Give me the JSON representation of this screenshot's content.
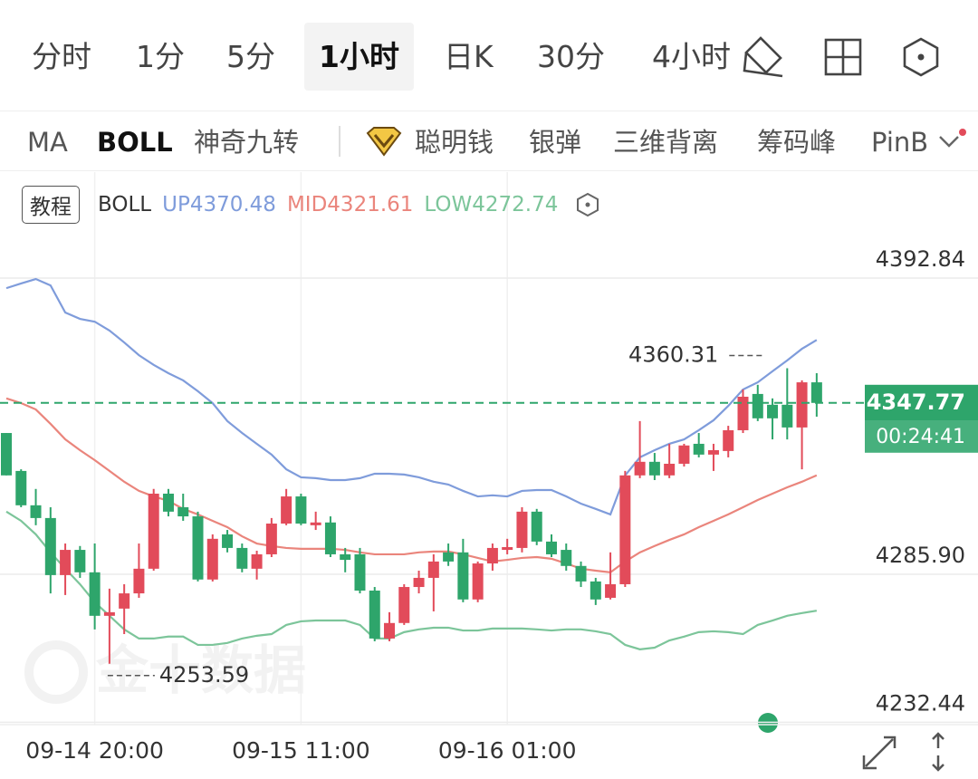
{
  "tabs": {
    "items": [
      "分时",
      "1分",
      "5分",
      "1小时",
      "日K",
      "30分",
      "4小时"
    ],
    "selected": 3
  },
  "indicators": {
    "items": [
      "MA",
      "BOLL",
      "神奇九转",
      "聪明钱",
      "银弹",
      "三维背离",
      "筹码峰",
      "PinB"
    ],
    "selected": 1
  },
  "chart_data": {
    "type": "candlestick",
    "tutorial_button": "教程",
    "indicator": "BOLL",
    "watermark": "金十数据",
    "countdown": "00:24:41",
    "up_color": "#e24b5a",
    "down_color": "#2ea56b",
    "x": [
      null,
      null,
      null,
      null,
      null,
      null,
      "09-14 20:00",
      null,
      null,
      null,
      null,
      null,
      null,
      null,
      null,
      null,
      null,
      null,
      null,
      null,
      "09-15 11:00",
      null,
      null,
      null,
      null,
      null,
      null,
      null,
      null,
      null,
      null,
      null,
      null,
      null,
      "09-16 01:00",
      null,
      null,
      null,
      null,
      null,
      null,
      null,
      null,
      null,
      null,
      null,
      null,
      null,
      null,
      null,
      null,
      null,
      null,
      null,
      null,
      null
    ],
    "candles": {
      "open": [
        4336.9,
        4323.2,
        4310.8,
        4306.2,
        4285.6,
        4294.7,
        4286.6,
        4270.9,
        4273.5,
        4279.0,
        4287.9,
        4315.0,
        4310.1,
        4306.8,
        4284.0,
        4300.3,
        4295.4,
        4287.9,
        4293.1,
        4304.2,
        4314.0,
        4303.6,
        4304.6,
        4293.1,
        4293.1,
        4280.0,
        4262.7,
        4268.3,
        4281.3,
        4284.6,
        4293.8,
        4293.8,
        4276.8,
        4289.8,
        4294.7,
        4295.4,
        4308.5,
        4297.7,
        4294.7,
        4288.9,
        4283.3,
        4277.4,
        4282.3,
        4321.6,
        4326.5,
        4321.6,
        4325.8,
        4333.0,
        4329.1,
        4330.4,
        4337.9,
        4351.0,
        4347.1,
        4347.1,
        4338.9,
        4355.2
      ],
      "high": [
        4336.9,
        4323.8,
        4316.7,
        4310.1,
        4297.0,
        4296.1,
        4297.0,
        4280.7,
        4282.3,
        4297.0,
        4316.7,
        4316.7,
        4315.0,
        4308.5,
        4300.3,
        4301.9,
        4297.0,
        4294.4,
        4306.2,
        4316.7,
        4315.0,
        4308.5,
        4306.8,
        4295.4,
        4295.4,
        4281.3,
        4272.2,
        4282.3,
        4287.2,
        4293.1,
        4297.0,
        4298.7,
        4290.5,
        4297.0,
        4298.7,
        4310.1,
        4309.5,
        4300.3,
        4297.0,
        4290.5,
        4284.6,
        4293.8,
        4323.2,
        4341.2,
        4329.7,
        4333.0,
        4333.0,
        4336.9,
        4333.0,
        4339.5,
        4352.6,
        4354.3,
        4349.4,
        4360.31,
        4355.9,
        4358.5
      ],
      "low": [
        4321.6,
        4310.1,
        4303.6,
        4279.0,
        4278.4,
        4284.6,
        4266.0,
        4253.59,
        4264.3,
        4277.4,
        4287.2,
        4306.8,
        4305.2,
        4283.3,
        4283.3,
        4293.8,
        4286.6,
        4284.0,
        4292.1,
        4303.6,
        4303.6,
        4301.9,
        4292.1,
        4286.6,
        4279.0,
        4261.7,
        4261.7,
        4267.6,
        4279.0,
        4272.5,
        4288.9,
        4275.8,
        4275.8,
        4287.2,
        4293.1,
        4293.8,
        4296.4,
        4292.1,
        4287.2,
        4281.3,
        4274.8,
        4276.8,
        4281.3,
        4320.6,
        4319.9,
        4320.6,
        4324.8,
        4328.1,
        4323.2,
        4328.1,
        4336.9,
        4341.2,
        4334.6,
        4334.6,
        4323.8,
        4342.8
      ],
      "close": [
        4321.6,
        4310.8,
        4306.2,
        4285.6,
        4294.7,
        4286.6,
        4270.9,
        4272.2,
        4279.0,
        4287.9,
        4315.0,
        4308.5,
        4306.8,
        4284.0,
        4298.7,
        4295.4,
        4287.9,
        4293.1,
        4304.2,
        4314.0,
        4304.2,
        4304.6,
        4293.1,
        4291.1,
        4280.0,
        4262.7,
        4268.3,
        4281.3,
        4284.6,
        4290.5,
        4290.5,
        4276.8,
        4289.8,
        4295.4,
        4295.7,
        4308.5,
        4297.7,
        4293.1,
        4288.9,
        4283.3,
        4276.8,
        4282.3,
        4321.6,
        4326.5,
        4321.6,
        4325.8,
        4332.4,
        4329.1,
        4330.7,
        4337.9,
        4350.0,
        4342.2,
        4342.2,
        4338.9,
        4355.2,
        4347.77
      ]
    },
    "series": [
      {
        "name": "UP",
        "color": "#7f9cdb",
        "values": [
          4389.2,
          4390.9,
          4392.5,
          4390.2,
          4380.4,
          4378.1,
          4377.1,
          4373.9,
          4369.6,
          4365.0,
          4361.5,
          4358.5,
          4355.9,
          4352.0,
          4347.7,
          4341.2,
          4336.9,
          4333.0,
          4329.1,
          4323.8,
          4320.9,
          4320.6,
          4319.9,
          4319.9,
          4320.6,
          4322.2,
          4322.2,
          4321.9,
          4320.9,
          4319.3,
          4318.3,
          4316.0,
          4314.0,
          4314.4,
          4314.0,
          4316.0,
          4316.3,
          4316.3,
          4314.0,
          4311.4,
          4309.5,
          4307.5,
          4321.6,
          4328.1,
          4330.7,
          4333.0,
          4334.6,
          4337.9,
          4341.5,
          4346.7,
          4352.6,
          4355.2,
          4359.2,
          4363.1,
          4367.3,
          4370.48
        ]
      },
      {
        "name": "MID",
        "color": "#ea857c",
        "values": [
          4349.4,
          4347.7,
          4345.4,
          4340.2,
          4334.6,
          4330.7,
          4327.1,
          4323.2,
          4319.3,
          4316.0,
          4314.0,
          4312.4,
          4309.5,
          4307.5,
          4305.2,
          4302.9,
          4299.6,
          4297.0,
          4296.1,
          4295.4,
          4295.1,
          4295.1,
          4295.1,
          4294.7,
          4293.8,
          4293.1,
          4293.1,
          4293.1,
          4293.8,
          4294.1,
          4294.1,
          4293.1,
          4291.8,
          4290.5,
          4291.1,
          4291.8,
          4292.1,
          4291.5,
          4289.8,
          4287.9,
          4287.2,
          4286.6,
          4290.5,
          4293.8,
          4296.1,
          4298.3,
          4300.3,
          4302.9,
          4305.2,
          4307.5,
          4310.1,
          4312.7,
          4315.0,
          4317.3,
          4319.3,
          4321.61
        ]
      },
      {
        "name": "LOW",
        "color": "#7cc59a",
        "values": [
          4308.5,
          4305.2,
          4300.3,
          4293.8,
          4287.9,
          4282.3,
          4275.8,
          4270.9,
          4266.0,
          4262.7,
          4262.7,
          4263.4,
          4263.4,
          4260.4,
          4260.4,
          4261.1,
          4262.7,
          4263.7,
          4264.3,
          4267.6,
          4268.9,
          4269.2,
          4269.2,
          4269.2,
          4267.6,
          4262.7,
          4262.7,
          4265.0,
          4266.0,
          4266.6,
          4266.6,
          4265.6,
          4265.6,
          4266.3,
          4266.3,
          4266.3,
          4266.0,
          4265.6,
          4266.0,
          4266.0,
          4265.3,
          4264.3,
          4260.4,
          4258.8,
          4259.4,
          4262.0,
          4263.4,
          4265.0,
          4265.3,
          4265.0,
          4264.3,
          4267.6,
          4269.2,
          4270.9,
          4271.9,
          4272.74
        ]
      }
    ],
    "ylim": [
      4231.6,
      4431.1
    ],
    "yticks": [
      4392.84,
      {
        "value": 4285.9,
        "label": "4285.90"
      },
      4232.44
    ],
    "grid": true
  }
}
